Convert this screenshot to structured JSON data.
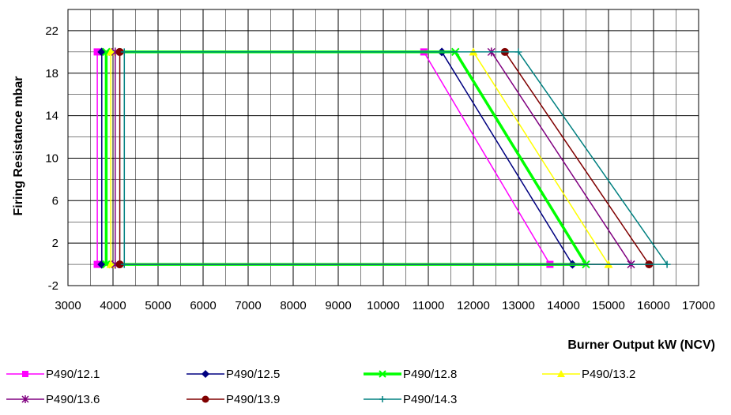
{
  "chart_data": {
    "type": "line",
    "title": "",
    "xlabel": "Burner Output kW (NCV)",
    "ylabel": "Firing Resistance mbar",
    "xlim": [
      3000,
      17000
    ],
    "ylim": [
      -2,
      24
    ],
    "x_ticks": [
      3000,
      4000,
      5000,
      6000,
      7000,
      8000,
      9000,
      10000,
      11000,
      12000,
      13000,
      14000,
      15000,
      16000,
      17000
    ],
    "x_tick_labels": [
      "3000",
      "4000",
      "5000",
      "6000",
      "7000",
      "8000",
      "9000",
      "10000",
      "11000",
      "12000",
      "13000",
      "14000",
      "15000",
      "16000",
      "17000"
    ],
    "y_ticks": [
      -2,
      2,
      6,
      10,
      14,
      18,
      22
    ],
    "grid": true,
    "legend_position": "bottom",
    "series": [
      {
        "name": "P490/12.1",
        "color": "#ff00ff",
        "marker": "square",
        "x": [
          3650,
          3650,
          10900,
          13700,
          3650
        ],
        "y": [
          0,
          20,
          20,
          0,
          0
        ]
      },
      {
        "name": "P490/12.5",
        "color": "#000080",
        "marker": "diamond",
        "x": [
          3750,
          3750,
          11300,
          14200,
          3750
        ],
        "y": [
          0,
          20,
          20,
          0,
          0
        ]
      },
      {
        "name": "P490/12.8",
        "color": "#00ff00",
        "marker": "x",
        "x": [
          3850,
          3850,
          11600,
          14500,
          3850
        ],
        "y": [
          0,
          20,
          20,
          0,
          0
        ]
      },
      {
        "name": "P490/13.2",
        "color": "#ffff00",
        "marker": "triangle",
        "x": [
          3950,
          3950,
          12000,
          15000,
          3950
        ],
        "y": [
          0,
          20,
          20,
          0,
          0
        ]
      },
      {
        "name": "P490/13.6",
        "color": "#800080",
        "marker": "star",
        "x": [
          4050,
          4050,
          12400,
          15500,
          4050
        ],
        "y": [
          0,
          20,
          20,
          0,
          0
        ]
      },
      {
        "name": "P490/13.9",
        "color": "#800000",
        "marker": "circle",
        "x": [
          4150,
          4150,
          12700,
          15900,
          4150
        ],
        "y": [
          0,
          20,
          20,
          0,
          0
        ]
      },
      {
        "name": "P490/14.3",
        "color": "#008080",
        "marker": "plus",
        "x": [
          4250,
          4250,
          13000,
          16300,
          4250
        ],
        "y": [
          0,
          20,
          20,
          0,
          0
        ]
      }
    ]
  }
}
